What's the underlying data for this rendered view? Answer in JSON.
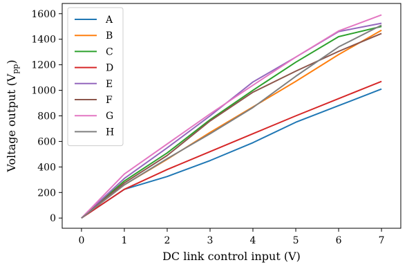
{
  "chart_data": {
    "type": "line",
    "xlabel": "DC link control input (V)",
    "ylabel": "Voltage output (V",
    "ylabel_subscript": "pp",
    "ylabel_suffix": ")",
    "xlim": [
      -0.45,
      7.45
    ],
    "ylim": [
      -80,
      1680
    ],
    "xticks": [
      0,
      1,
      2,
      3,
      4,
      5,
      6,
      7
    ],
    "yticks": [
      0,
      200,
      400,
      600,
      800,
      1000,
      1200,
      1400,
      1600
    ],
    "grid": false,
    "legend_position": "top-left",
    "x": [
      0,
      1,
      2,
      3,
      4,
      5,
      6,
      7
    ],
    "series": [
      {
        "name": "A",
        "color": "#1f77b4",
        "values": [
          0,
          225,
          325,
          450,
          590,
          750,
          880,
          1010
        ]
      },
      {
        "name": "B",
        "color": "#ff7f0e",
        "values": [
          0,
          260,
          460,
          670,
          870,
          1070,
          1280,
          1470
        ]
      },
      {
        "name": "C",
        "color": "#2ca02c",
        "values": [
          0,
          290,
          510,
          770,
          1000,
          1220,
          1420,
          1500
        ]
      },
      {
        "name": "D",
        "color": "#d62728",
        "values": [
          0,
          225,
          380,
          520,
          660,
          800,
          935,
          1070
        ]
      },
      {
        "name": "E",
        "color": "#9467bd",
        "values": [
          0,
          310,
          550,
          800,
          1065,
          1260,
          1460,
          1525
        ]
      },
      {
        "name": "F",
        "color": "#8c564b",
        "values": [
          0,
          275,
          490,
          760,
          985,
          1150,
          1305,
          1445
        ]
      },
      {
        "name": "G",
        "color": "#e377c2",
        "values": [
          0,
          345,
          580,
          815,
          1040,
          1260,
          1465,
          1590
        ]
      },
      {
        "name": "H",
        "color": "#7f7f7f",
        "values": [
          0,
          260,
          465,
          660,
          865,
          1110,
          1340,
          1510
        ]
      }
    ]
  }
}
